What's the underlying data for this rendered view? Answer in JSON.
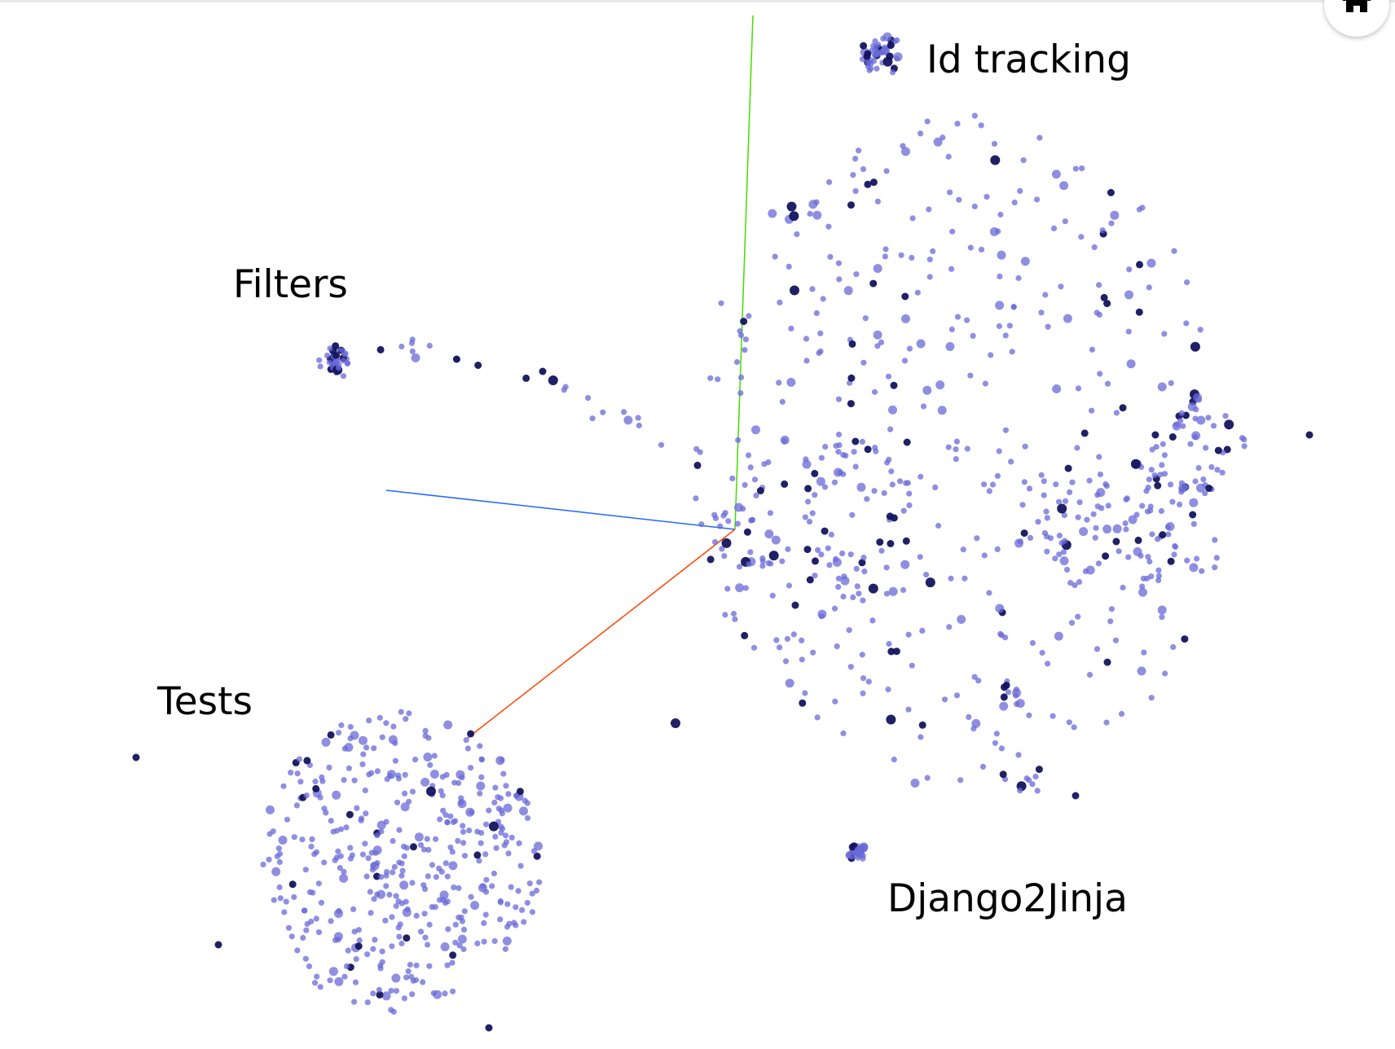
{
  "chart_data": {
    "type": "scatter",
    "projection": "3d",
    "title": "",
    "grid": false,
    "legend": "none",
    "axes": [
      {
        "name": "x",
        "color": "#ff4400"
      },
      {
        "name": "y",
        "color": "#44dd00"
      },
      {
        "name": "z",
        "color": "#2266ff"
      }
    ],
    "point_colors": {
      "light": "#6a6ad8",
      "dark": "#14145e"
    },
    "annotations": [
      {
        "id": "id-tracking",
        "text": "Id tracking"
      },
      {
        "id": "filters",
        "text": "Filters"
      },
      {
        "id": "tests",
        "text": "Tests"
      },
      {
        "id": "django2jinja",
        "text": "Django2Jinja"
      }
    ]
  },
  "controls": {
    "home_icon": "home-icon"
  }
}
